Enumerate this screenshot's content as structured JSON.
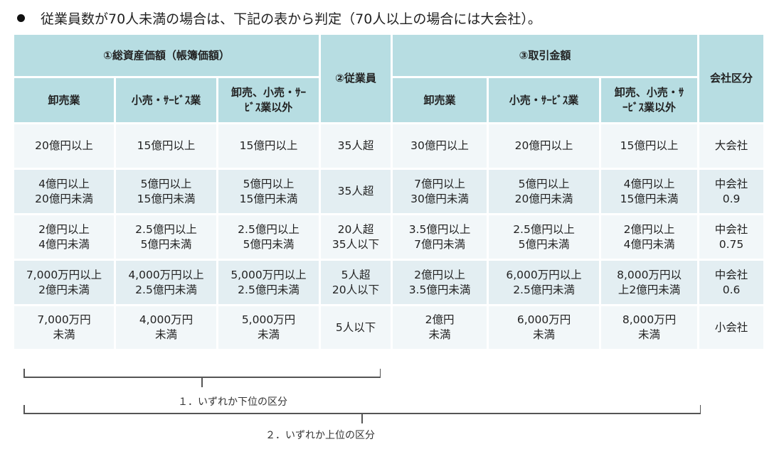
{
  "heading": "従業員数が70人未満の場合は、下記の表から判定（70人以上の場合には大会社）。",
  "table": {
    "group_headers": {
      "assets": "①総資産価額（帳簿価額）",
      "employees": "②従業員",
      "transactions": "③取引金額",
      "company_class": "会社区分"
    },
    "sub_headers": {
      "assets": [
        "卸売業",
        "小売・ｻｰﾋﾞｽ業",
        "卸売、小売・ｻｰﾋﾞｽ業以外"
      ],
      "transactions": [
        "卸売業",
        "小売・ｻｰﾋﾞｽ業",
        "卸売、小売・ｻｰﾋﾞｽ業以外"
      ]
    },
    "rows": [
      {
        "assets": [
          "20億円以上",
          "15億円以上",
          "15億円以上"
        ],
        "employees": "35人超",
        "transactions": [
          "30億円以上",
          "20億円以上",
          "15億円以上"
        ],
        "company_class": "大会社"
      },
      {
        "assets": [
          "4億円以上\n20億円未満",
          "5億円以上\n15億円未満",
          "5億円以上\n15億円未満"
        ],
        "employees": "35人超",
        "transactions": [
          "7億円以上\n30億円未満",
          "5億円以上\n20億円未満",
          "4億円以上\n15億円未満"
        ],
        "company_class": "中会社\n0.9"
      },
      {
        "assets": [
          "2億円以上\n4億円未満",
          "2.5億円以上\n5億円未満",
          "2.5億円以上\n5億円未満"
        ],
        "employees": "20人超\n35人以下",
        "transactions": [
          "3.5億円以上\n7億円未満",
          "2.5億円以上\n5億円未満",
          "2億円以上\n4億円未満"
        ],
        "company_class": "中会社\n0.75"
      },
      {
        "assets": [
          "7,000万円以上\n2億円未満",
          "4,000万円以上\n2.5億円未満",
          "5,000万円以上\n2.5億円未満"
        ],
        "employees": "5人超\n20人以下",
        "transactions": [
          "2億円以上\n3.5億円未満",
          "6,000万円以上\n2.5億円未満",
          "8,000万円以\n上2億円未満"
        ],
        "company_class": "中会社\n0.6"
      },
      {
        "assets": [
          "7,000万円\n未満",
          "4,000万円\n未満",
          "5,000万円\n未満"
        ],
        "employees": "5人以下",
        "transactions": [
          "2億円\n未満",
          "6,000万円\n未満",
          "8,000万円\n未満"
        ],
        "company_class": "小会社"
      }
    ]
  },
  "braces": {
    "lower": "１．いずれか下位の区分",
    "upper": "２．いずれか上位の区分"
  }
}
